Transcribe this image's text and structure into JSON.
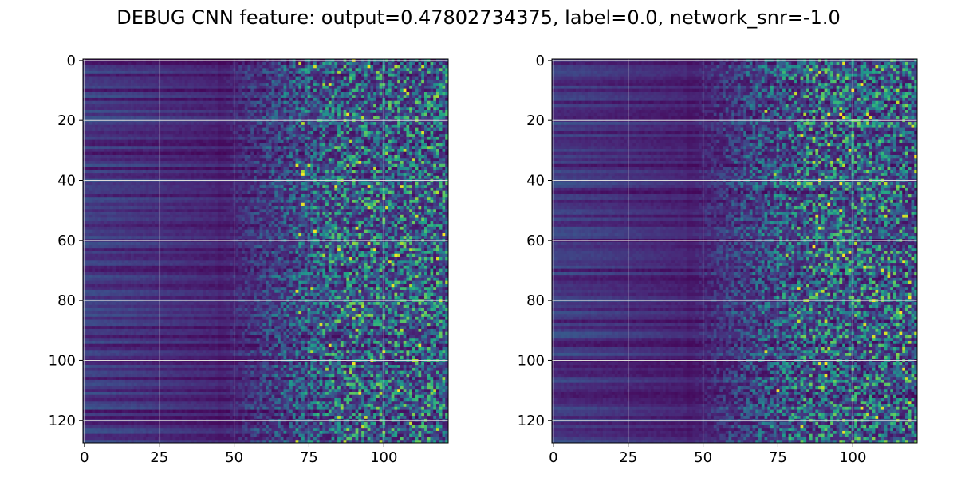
{
  "chart_data": [
    {
      "type": "heatmap",
      "title": "DEBUG CNN feature: output=0.47802734375, label=0.0, network_snr=-1.0",
      "xlabel": "",
      "ylabel": "",
      "colormap": "viridis",
      "rows": 128,
      "cols": 122,
      "xlim": [
        -0.5,
        121.5
      ],
      "ylim": [
        127.5,
        -0.5
      ],
      "x_ticks": [
        "0",
        "25",
        "50",
        "75",
        "100"
      ],
      "y_ticks": [
        "0",
        "20",
        "40",
        "60",
        "80",
        "100",
        "120"
      ],
      "grid": true,
      "panels": [
        {
          "name": "",
          "pattern": "dark low-value band for columns 0–50, noisy speckle increasing toward columns 75–121"
        },
        {
          "name": "",
          "pattern": "dark low-value band for columns 0–50, noisy speckle increasing toward columns 75–121"
        }
      ]
    }
  ],
  "colors": {
    "viridis_low": "#440154",
    "viridis_midlow": "#3b528b",
    "viridis_mid": "#21918c",
    "viridis_midhigh": "#5ec962",
    "viridis_high": "#fde725",
    "grid": "#d9d9d9"
  }
}
